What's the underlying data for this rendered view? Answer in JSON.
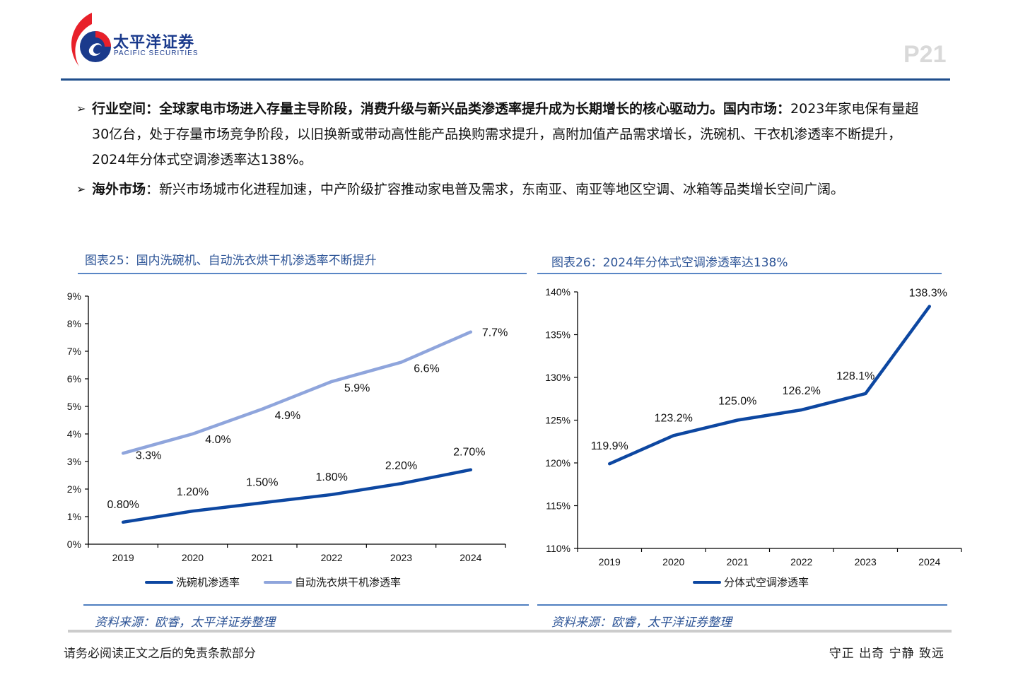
{
  "header": {
    "logo_cn": "太平洋证券",
    "logo_en": "PACIFIC SECURITIES",
    "page_number": "P21",
    "brand_colors": {
      "red": "#e8202a",
      "blue": "#1a3a8c"
    }
  },
  "bullets": [
    {
      "head": "行业空间：",
      "bold_body": "全球家电市场进入存量主导阶段，消费升级与新兴品类渗透率提升成为长期增长的核心驱动力。国内市场：",
      "body": "2023年家电保有量超30亿台，处于存量市场竞争阶段，以旧换新或带动高性能产品换购需求提升，高附加值产品需求增长，洗碗机、干衣机渗透率不断提升，2024年分体式空调渗透率达138%。"
    },
    {
      "head": "海外市场",
      "bold_body": "",
      "body": "：新兴市场城市化进程加速，中产阶级扩容推动家电普及需求，东南亚、南亚等地区空调、冰箱等品类增长空间广阔。"
    }
  ],
  "figures": [
    {
      "title": "图表25：国内洗碗机、自动洗衣烘干机渗透率不断提升",
      "source": "资料来源：欧睿，太平洋证券整理"
    },
    {
      "title": "图表26：2024年分体式空调渗透率达138%",
      "source": "资料来源：欧睿，太平洋证券整理"
    }
  ],
  "footer": {
    "disclaimer": "请务必阅读正文之后的免责条款部分",
    "motto": "守正 出奇 宁静 致远"
  },
  "chart_data": [
    {
      "type": "line",
      "title": "图表25：国内洗碗机、自动洗衣烘干机渗透率不断提升",
      "xlabel": "",
      "ylabel": "",
      "categories": [
        "2019",
        "2020",
        "2021",
        "2022",
        "2023",
        "2024"
      ],
      "ylim": [
        0,
        9
      ],
      "yticks": [
        "0%",
        "1%",
        "2%",
        "3%",
        "4%",
        "5%",
        "6%",
        "7%",
        "8%",
        "9%"
      ],
      "grid": false,
      "legend_position": "bottom",
      "series": [
        {
          "name": "洗碗机渗透率",
          "color": "#0d47a1",
          "values": [
            0.8,
            1.2,
            1.5,
            1.8,
            2.2,
            2.7
          ],
          "labels": [
            "0.80%",
            "1.20%",
            "1.50%",
            "1.80%",
            "2.20%",
            "2.70%"
          ]
        },
        {
          "name": "自动洗衣烘干机渗透率",
          "color": "#8fa5dc",
          "values": [
            3.3,
            4.0,
            4.9,
            5.9,
            6.6,
            7.7
          ],
          "labels": [
            "3.3%",
            "4.0%",
            "4.9%",
            "5.9%",
            "6.6%",
            "7.7%"
          ]
        }
      ]
    },
    {
      "type": "line",
      "title": "图表26：2024年分体式空调渗透率达138%",
      "xlabel": "",
      "ylabel": "",
      "categories": [
        "2019",
        "2020",
        "2021",
        "2022",
        "2023",
        "2024"
      ],
      "ylim": [
        110,
        140
      ],
      "yticks": [
        "110%",
        "115%",
        "120%",
        "125%",
        "130%",
        "135%",
        "140%"
      ],
      "grid": false,
      "legend_position": "bottom",
      "series": [
        {
          "name": "分体式空调渗透率",
          "color": "#0d47a1",
          "values": [
            119.9,
            123.2,
            125.0,
            126.2,
            128.1,
            138.3
          ],
          "labels": [
            "119.9%",
            "123.2%",
            "125.0%",
            "126.2%",
            "128.1%",
            "138.3%"
          ]
        }
      ]
    }
  ]
}
